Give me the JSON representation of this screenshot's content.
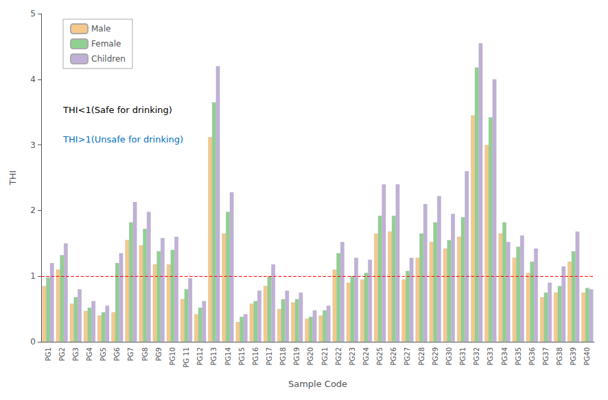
{
  "chart_data": {
    "type": "bar",
    "xlabel": "Sample Code",
    "ylabel": "THI",
    "categories": [
      "PG1",
      "PG2",
      "PG3",
      "PG4",
      "PG5",
      "PG6",
      "PG7",
      "PG8",
      "PG9",
      "PG10",
      "PG 11",
      "PG12",
      "PG13",
      "PG14",
      "PG15",
      "PG16",
      "PG17",
      "PG18",
      "PG19",
      "PG20",
      "PG21",
      "PG22",
      "PG23",
      "PG24",
      "PG25",
      "PG26",
      "PG27",
      "PG28",
      "PG29",
      "PG30",
      "PG31",
      "PG32",
      "PG33",
      "PG34",
      "PG35",
      "PG36",
      "PG37",
      "PG38",
      "PG39",
      "PG40"
    ],
    "series": [
      {
        "name": "Male",
        "color": "#f5c98a",
        "values": [
          0.85,
          1.1,
          0.58,
          0.47,
          0.4,
          0.45,
          1.55,
          1.47,
          1.18,
          1.18,
          0.65,
          0.42,
          3.12,
          1.65,
          0.3,
          0.58,
          0.85,
          0.5,
          0.6,
          0.35,
          0.4,
          1.1,
          0.9,
          0.95,
          1.65,
          1.68,
          0.95,
          1.28,
          1.52,
          1.42,
          1.6,
          3.45,
          3.0,
          1.65,
          1.28,
          1.05,
          0.68,
          0.75,
          1.22,
          0.75
        ]
      },
      {
        "name": "Female",
        "color": "#90d090",
        "values": [
          0.98,
          1.32,
          0.68,
          0.52,
          0.45,
          1.2,
          1.82,
          1.72,
          1.38,
          1.4,
          0.8,
          0.52,
          3.65,
          1.98,
          0.38,
          0.62,
          1.0,
          0.65,
          0.65,
          0.38,
          0.48,
          1.35,
          1.0,
          1.05,
          1.92,
          1.92,
          1.08,
          1.65,
          1.82,
          1.55,
          1.9,
          4.18,
          3.42,
          1.82,
          1.45,
          1.22,
          0.75,
          0.85,
          1.38,
          0.82
        ]
      },
      {
        "name": "Children",
        "color": "#c0b0d8",
        "values": [
          1.2,
          1.5,
          0.8,
          0.62,
          0.55,
          1.35,
          2.13,
          1.98,
          1.58,
          1.6,
          0.97,
          0.62,
          4.2,
          2.28,
          0.42,
          0.78,
          1.18,
          0.78,
          0.75,
          0.48,
          0.55,
          1.52,
          1.28,
          1.25,
          2.4,
          2.4,
          1.28,
          2.1,
          2.22,
          1.95,
          2.6,
          4.55,
          4.0,
          1.52,
          1.62,
          1.42,
          0.9,
          1.15,
          1.68,
          0.8
        ]
      }
    ],
    "ref_line": {
      "value": 1.0,
      "color": "#ff0000",
      "line_style": "dashed"
    },
    "annotations": [
      {
        "text": "THI<1(Safe for drinking)",
        "color": "#000000"
      },
      {
        "text": "THI>1(Unsafe for drinking)",
        "color": "#0070c0"
      }
    ],
    "ylim": [
      0,
      5
    ],
    "yticks": [
      0,
      1,
      2,
      3,
      4,
      5
    ],
    "grid": false,
    "legend": "upper left"
  }
}
